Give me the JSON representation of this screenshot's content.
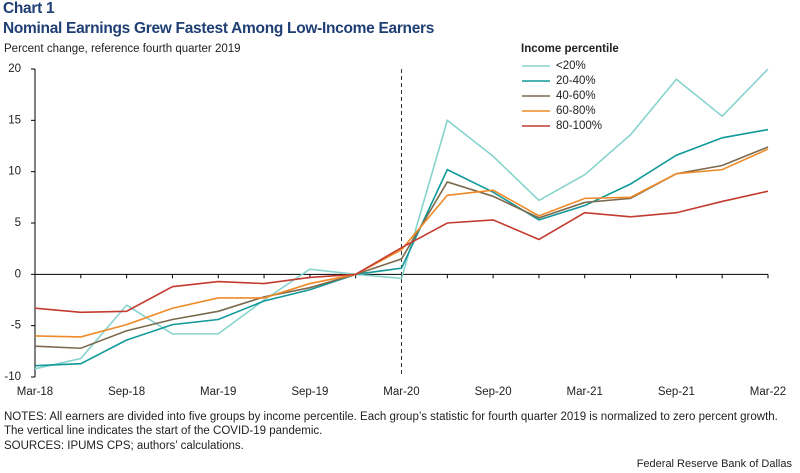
{
  "chart_data": {
    "type": "line",
    "label": "Chart 1",
    "title": "Nominal Earnings Grew Fastest Among Low-Income Earners",
    "subtitle": "Percent change, reference fourth quarter 2019",
    "legend_title": "Income percentile",
    "categories": [
      "Mar-18",
      null,
      "Sep-18",
      null,
      "Mar-19",
      null,
      "Sep-19",
      null,
      "Mar-20",
      null,
      "Sep-20",
      null,
      "Mar-21",
      null,
      "Sep-21",
      null,
      "Mar-22"
    ],
    "series": [
      {
        "name": "<20%",
        "color": "#86d4cd",
        "values": [
          -9.2,
          -8.2,
          -3,
          -5.8,
          -5.8,
          -2.5,
          0.5,
          0,
          -0.4,
          15,
          11.5,
          7.2,
          9.7,
          13.6,
          19,
          15.4,
          20
        ]
      },
      {
        "name": "20-40%",
        "color": "#11999a",
        "values": [
          -8.9,
          -8.7,
          -6.4,
          -4.9,
          -4.4,
          -2.6,
          -1.5,
          0,
          0.6,
          10.2,
          8.0,
          5.3,
          6.7,
          8.8,
          11.6,
          13.3,
          14.1
        ]
      },
      {
        "name": "40-60%",
        "color": "#7b6a4e",
        "values": [
          -7,
          -7.2,
          -5.5,
          -4.4,
          -3.6,
          -2.2,
          -1.3,
          0,
          1.5,
          9.0,
          7.6,
          5.5,
          7.0,
          7.4,
          9.8,
          10.6,
          12.4
        ]
      },
      {
        "name": "60-80%",
        "color": "#ef8a28",
        "values": [
          -6,
          -6.1,
          -4.9,
          -3.3,
          -2.3,
          -2.3,
          -0.9,
          0,
          2.4,
          7.7,
          8.2,
          5.7,
          7.4,
          7.5,
          9.8,
          10.2,
          12.2
        ]
      },
      {
        "name": "80-100%",
        "color": "#c43b30",
        "values": [
          -3.3,
          -3.7,
          -3.6,
          -1.2,
          -0.7,
          -0.9,
          -0.3,
          0,
          2.6,
          5.0,
          5.3,
          3.4,
          6.0,
          5.6,
          6.0,
          7.1,
          8.1
        ]
      }
    ],
    "ylim": [
      -10,
      20
    ],
    "yticks": [
      -10,
      -5,
      0,
      5,
      10,
      15,
      20
    ],
    "vline": 8,
    "notes": "NOTES: All earners are divided into five groups by income percentile. Each group’s statistic for fourth quarter 2019 is normalized to zero percent growth. The vertical line indicates the start of the COVID-19 pandemic.",
    "sources": "SOURCES: IPUMS CPS; authors’ calculations.",
    "footer": "Federal Reserve Bank of Dallas"
  }
}
